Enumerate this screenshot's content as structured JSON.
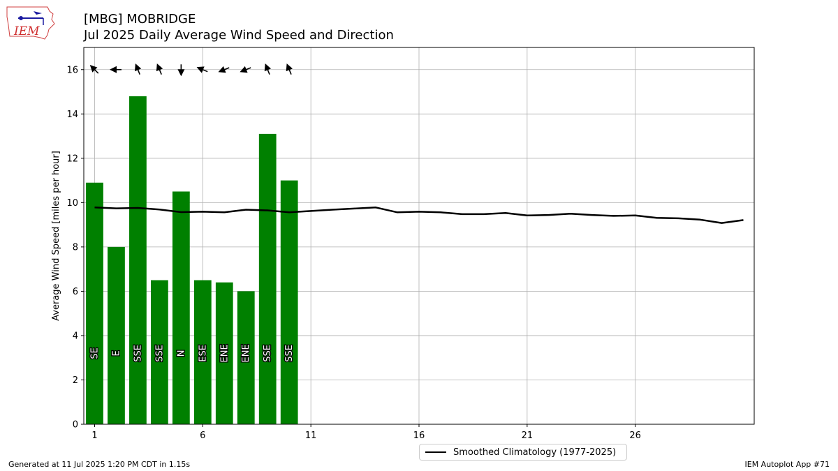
{
  "header": {
    "title_line1": "[MBG] MOBRIDGE",
    "title_line2": "Jul 2025 Daily Average Wind Speed and Direction"
  },
  "logo": {
    "name": "iem-logo-icon",
    "text": "IEM"
  },
  "footer": {
    "left": "Generated at 11 Jul 2025 1:20 PM CDT in 1.15s",
    "right": "IEM Autoplot App #71"
  },
  "chart_data": {
    "type": "bar",
    "title": "[MBG] MOBRIDGE\nJul 2025 Daily Average Wind Speed and Direction",
    "xlabel": "",
    "ylabel": "Average Wind Speed [miles per hour]",
    "xlim": [
      0.5,
      31.5
    ],
    "ylim": [
      0,
      17
    ],
    "xticks": [
      1,
      6,
      11,
      16,
      21,
      26
    ],
    "yticks": [
      0,
      2,
      4,
      6,
      8,
      10,
      12,
      14,
      16
    ],
    "grid": true,
    "legend_position": "bottom-center",
    "colors": {
      "bar": "#008000",
      "climatology": "#000000",
      "grid": "#b0b0b0"
    },
    "bars": {
      "days": [
        1,
        2,
        3,
        4,
        5,
        6,
        7,
        8,
        9,
        10
      ],
      "values": [
        10.9,
        8.0,
        14.8,
        6.5,
        10.5,
        6.5,
        6.4,
        6.0,
        13.1,
        11.0
      ],
      "direction_labels": [
        "SE",
        "E",
        "SSE",
        "SSE",
        "N",
        "ESE",
        "ENE",
        "ENE",
        "SSE",
        "SSE"
      ],
      "direction_degrees": [
        135,
        90,
        158,
        158,
        0,
        113,
        68,
        68,
        158,
        158
      ]
    },
    "series": [
      {
        "name": "Smoothed Climatology (1977-2025)",
        "type": "line",
        "x": [
          1,
          2,
          3,
          4,
          5,
          6,
          7,
          8,
          9,
          10,
          11,
          12,
          13,
          14,
          15,
          16,
          17,
          18,
          19,
          20,
          21,
          22,
          23,
          24,
          25,
          26,
          27,
          28,
          29,
          30,
          31
        ],
        "values": [
          9.78,
          9.74,
          9.76,
          9.69,
          9.57,
          9.59,
          9.56,
          9.68,
          9.65,
          9.56,
          9.62,
          9.68,
          9.73,
          9.78,
          9.56,
          9.59,
          9.56,
          9.48,
          9.48,
          9.53,
          9.42,
          9.44,
          9.5,
          9.44,
          9.4,
          9.42,
          9.31,
          9.29,
          9.23,
          9.08,
          9.21
        ]
      }
    ]
  }
}
